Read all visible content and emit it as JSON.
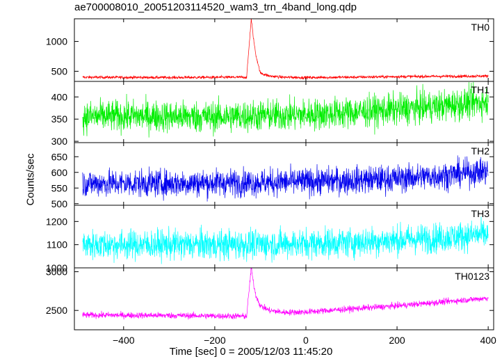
{
  "chart_data": {
    "type": "line",
    "title": "ae700008010_20051203114520_wam3_trn_4band_long.qdp",
    "xlabel": "Time [sec] 0 = 2005/12/03 11:45:20",
    "ylabel": "Counts/sec",
    "xlim": [
      -508,
      412
    ],
    "x_ticks": [
      -400,
      -200,
      0,
      200,
      400
    ],
    "grid": false,
    "panels": [
      {
        "name": "TH0",
        "color": "#ff0000",
        "ylim": [
          330,
          1380
        ],
        "y_ticks": [
          500,
          1000
        ],
        "x": [
          -490,
          -300,
          -130,
          -120,
          -115,
          -110,
          -100,
          -80,
          -50,
          0,
          100,
          200,
          300,
          400
        ],
        "y": [
          400,
          395,
          400,
          1380,
          1050,
          780,
          470,
          420,
          400,
          395,
          400,
          410,
          415,
          420
        ]
      },
      {
        "name": "TH1",
        "color": "#00ee00",
        "ylim": [
          297,
          435
        ],
        "y_ticks": [
          300,
          350,
          400
        ],
        "x": [
          -490,
          -400,
          -300,
          -200,
          -100,
          0,
          100,
          200,
          300,
          400
        ],
        "y": [
          355,
          357,
          356,
          355,
          358,
          360,
          365,
          372,
          380,
          390
        ]
      },
      {
        "name": "TH2",
        "color": "#0000ee",
        "ylim": [
          495,
          695
        ],
        "y_ticks": [
          500,
          550,
          600,
          650
        ],
        "x": [
          -490,
          -400,
          -300,
          -200,
          -100,
          0,
          100,
          200,
          300,
          400
        ],
        "y": [
          565,
          565,
          565,
          567,
          568,
          570,
          575,
          580,
          590,
          605
        ]
      },
      {
        "name": "TH3",
        "color": "#00ffff",
        "ylim": [
          1000,
          1270
        ],
        "y_ticks": [
          1000,
          1100,
          1200
        ],
        "x": [
          -490,
          -400,
          -300,
          -200,
          -100,
          0,
          100,
          200,
          300,
          400
        ],
        "y": [
          1100,
          1100,
          1100,
          1100,
          1102,
          1105,
          1110,
          1120,
          1130,
          1145
        ]
      },
      {
        "name": "TH0123",
        "color": "#ff00ff",
        "ylim": [
          2250,
          3050
        ],
        "y_ticks": [
          2500,
          3000
        ],
        "x": [
          -490,
          -300,
          -130,
          -120,
          -115,
          -110,
          -100,
          -80,
          -50,
          0,
          100,
          200,
          300,
          400
        ],
        "y": [
          2440,
          2435,
          2425,
          3050,
          2850,
          2700,
          2560,
          2500,
          2475,
          2480,
          2520,
          2560,
          2610,
          2660
        ]
      }
    ]
  }
}
